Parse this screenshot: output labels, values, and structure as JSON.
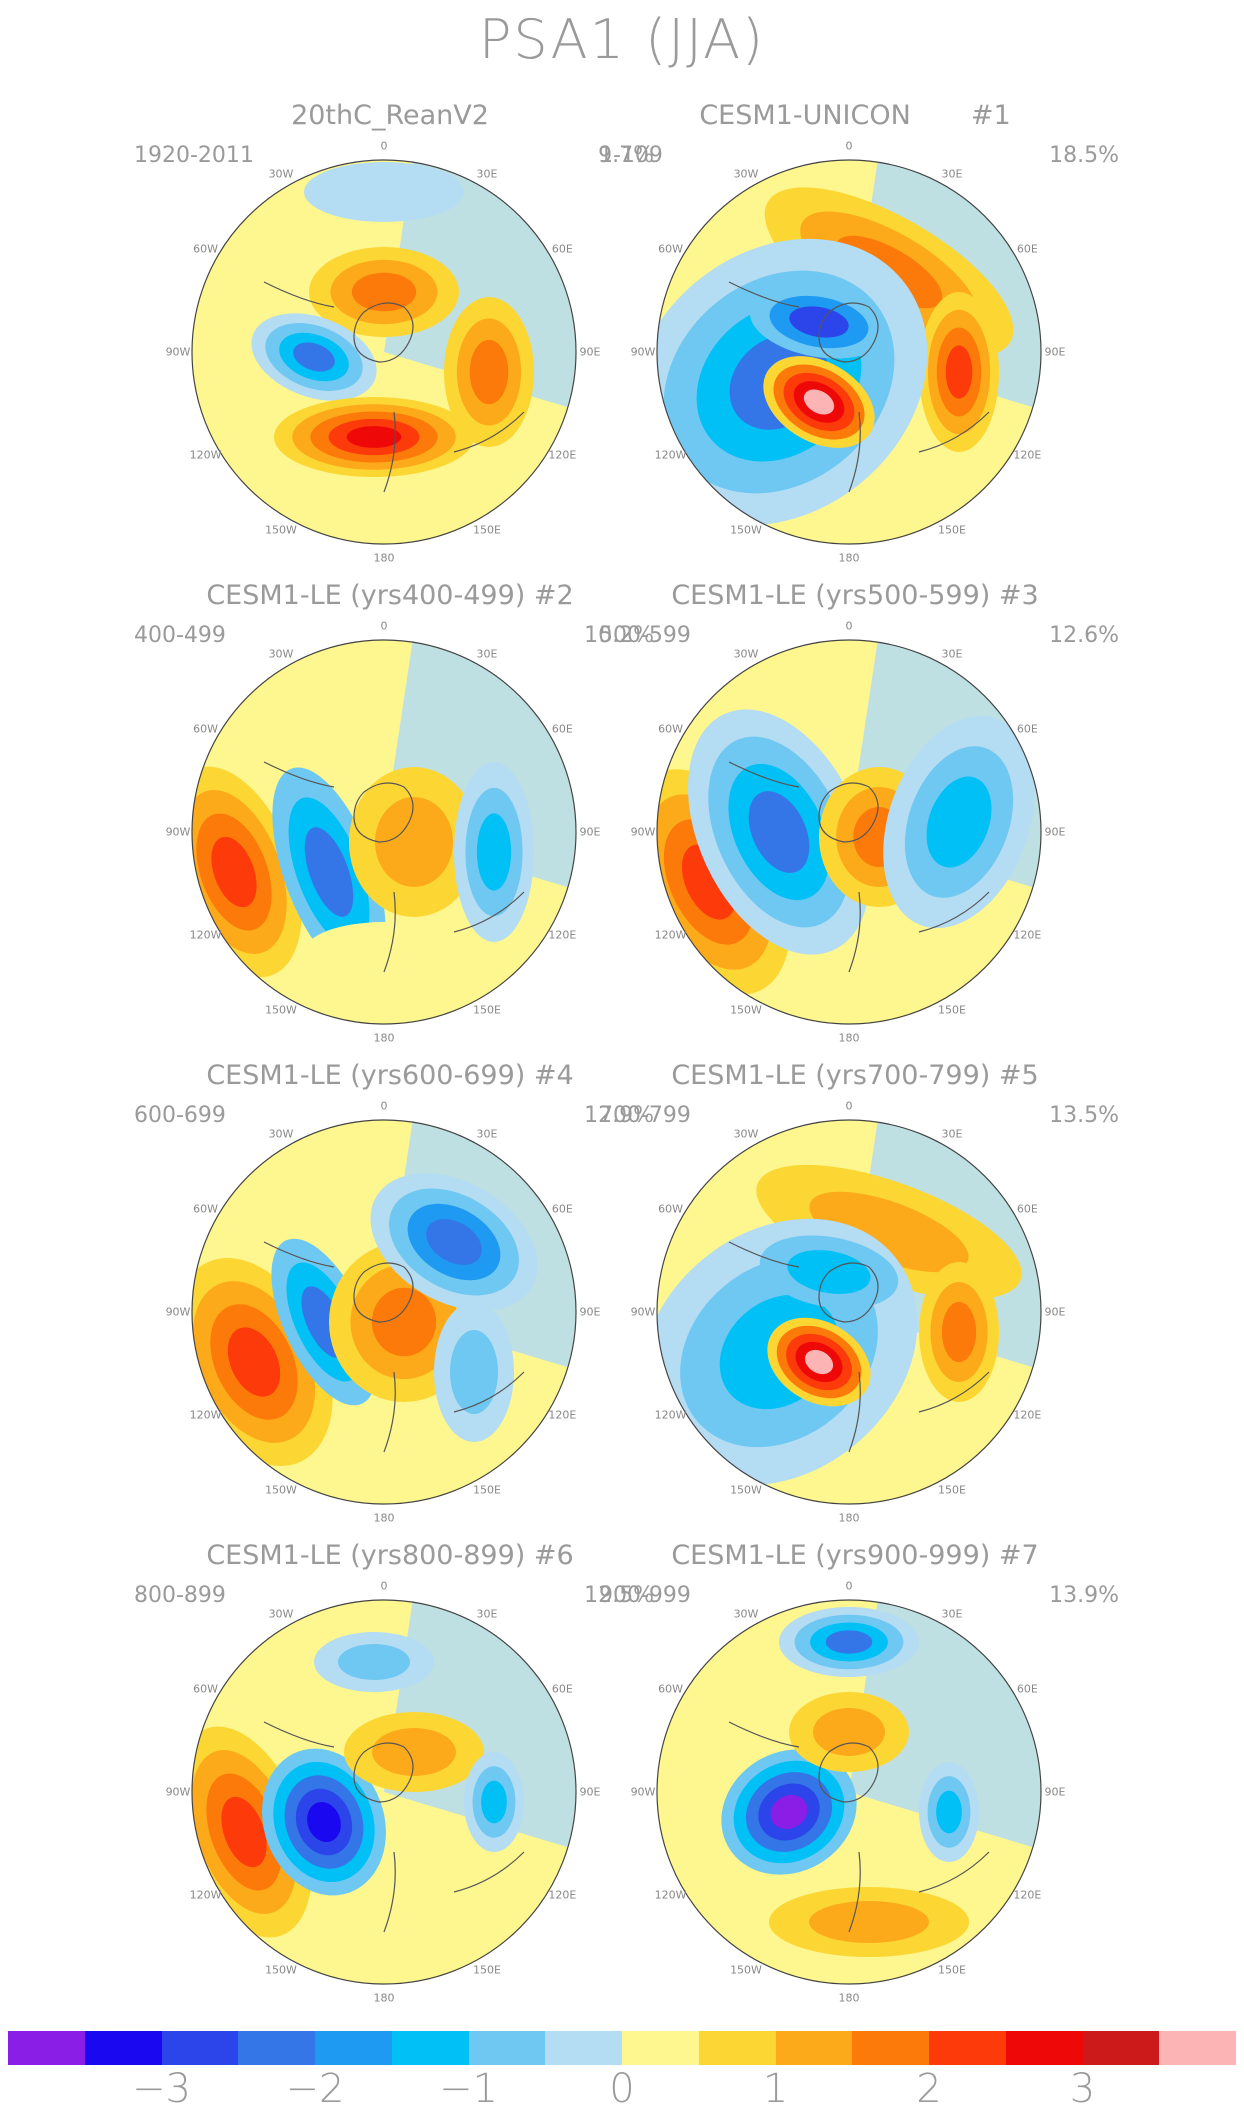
{
  "title": "PSA1 (JJA)",
  "polar_labels": [
    "0",
    "30E",
    "60E",
    "90E",
    "120E",
    "150E",
    "180",
    "150W",
    "120W",
    "90W",
    "60W",
    "30W"
  ],
  "panels": [
    {
      "title": "20thC_ReanV2",
      "years": "1920-2011",
      "pct": "9.7%"
    },
    {
      "title": "CESM1-UNICON       #1",
      "years": "1-109",
      "pct": "18.5%"
    },
    {
      "title": "CESM1-LE (yrs400-499) #2",
      "years": "400-499",
      "pct": "10.2%"
    },
    {
      "title": "CESM1-LE (yrs500-599) #3",
      "years": "500-599",
      "pct": "12.6%"
    },
    {
      "title": "CESM1-LE (yrs600-699) #4",
      "years": "600-699",
      "pct": "12.9%"
    },
    {
      "title": "CESM1-LE (yrs700-799) #5",
      "years": "700-799",
      "pct": "13.5%"
    },
    {
      "title": "CESM1-LE (yrs800-899) #6",
      "years": "800-899",
      "pct": "12.5%"
    },
    {
      "title": "CESM1-LE (yrs900-999) #7",
      "years": "900-999",
      "pct": "13.9%"
    }
  ],
  "colorbar": {
    "colors": [
      "#8a1de6",
      "#1a08f0",
      "#2b45ea",
      "#3476e8",
      "#1f9af2",
      "#00c0f5",
      "#6fc8f2",
      "#b4dcf2",
      "#fef68f",
      "#fcd734",
      "#fcaa1a",
      "#fc7a0a",
      "#fc3a0a",
      "#ee0808",
      "#cc1a1a",
      "#fcb4b4"
    ],
    "ticks": [
      "−3",
      "−2",
      "−1",
      "0",
      "1",
      "2",
      "3"
    ]
  }
}
